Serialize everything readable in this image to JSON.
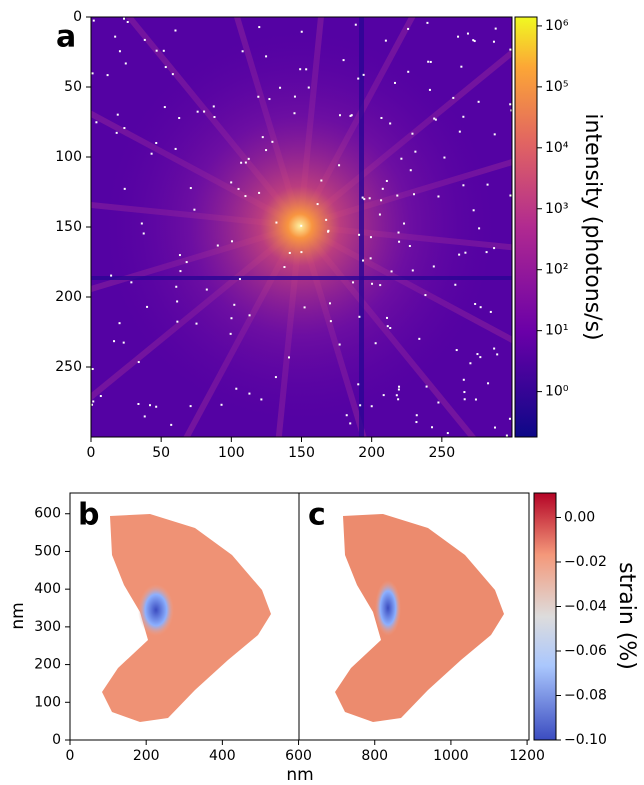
{
  "chart_data": [
    {
      "type": "image",
      "panel_label": "a",
      "xlim": [
        0,
        300
      ],
      "ylim": [
        0,
        300
      ],
      "xticks": [
        0,
        50,
        100,
        150,
        200,
        250
      ],
      "yticks": [
        0,
        50,
        100,
        150,
        200,
        250
      ],
      "colorbar": {
        "label": "intensity (photons/s)",
        "scale": "log",
        "lim": [
          0.18,
          1400000
        ],
        "ticks": [
          {
            "value": 1,
            "label": "10⁰"
          },
          {
            "value": 10,
            "label": "10¹"
          },
          {
            "value": 100,
            "label": "10²"
          },
          {
            "value": 1000,
            "label": "10³"
          },
          {
            "value": 10000,
            "label": "10⁴"
          },
          {
            "value": 100000,
            "label": "10⁵"
          },
          {
            "value": 1000000,
            "label": "10⁶"
          }
        ]
      }
    },
    {
      "type": "image",
      "panel_labels": [
        "b",
        "c"
      ],
      "xlabel": "nm",
      "ylabel": "nm",
      "xlim": [
        0,
        1205
      ],
      "ylim": [
        0,
        655
      ],
      "xticks": [
        0,
        200,
        400,
        600,
        800,
        1000,
        1200
      ],
      "yticks": [
        0,
        100,
        200,
        300,
        400,
        500,
        600
      ],
      "colorbar": {
        "label": "strain (%)",
        "scale": "linear",
        "lim": [
          -0.1,
          0.011
        ],
        "ticks": [
          {
            "value": 0,
            "label": "0.00"
          },
          {
            "value": -0.02,
            "label": "−0.02"
          },
          {
            "value": -0.04,
            "label": "−0.04"
          },
          {
            "value": -0.06,
            "label": "−0.06"
          },
          {
            "value": -0.08,
            "label": "−0.08"
          },
          {
            "value": -0.1,
            "label": "−0.10"
          }
        ]
      }
    }
  ]
}
